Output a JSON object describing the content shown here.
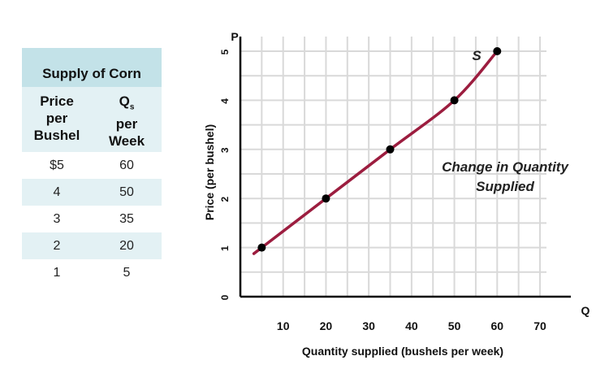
{
  "table": {
    "title": "Supply of Corn",
    "headers": [
      {
        "lines": [
          "Price",
          "per",
          "Bushel"
        ]
      },
      {
        "lines": [
          "Q",
          "per",
          "Week"
        ],
        "subscript": "s"
      }
    ],
    "rows": [
      {
        "price": "$5",
        "qty": "60"
      },
      {
        "price": "4",
        "qty": "50"
      },
      {
        "price": "3",
        "qty": "35"
      },
      {
        "price": "2",
        "qty": "20"
      },
      {
        "price": "1",
        "qty": "5"
      }
    ]
  },
  "chart_data": {
    "type": "line",
    "xlabel": "Quantity supplied (bushels per week)",
    "ylabel": "Price (per bushel)",
    "x_axis_symbol": "Q",
    "y_axis_symbol": "P",
    "xlim": [
      0,
      70
    ],
    "ylim": [
      0,
      5
    ],
    "x_ticks": [
      10,
      20,
      30,
      40,
      50,
      60,
      70
    ],
    "y_ticks": [
      0,
      1,
      2,
      3,
      4,
      5
    ],
    "grid": true,
    "series": [
      {
        "name": "S",
        "color": "#9c1d3f",
        "points": [
          {
            "x": 5,
            "y": 1
          },
          {
            "x": 20,
            "y": 2
          },
          {
            "x": 35,
            "y": 3
          },
          {
            "x": 50,
            "y": 4
          },
          {
            "x": 60,
            "y": 5
          }
        ]
      }
    ],
    "annotation": [
      "Change in Quantity",
      "Supplied"
    ]
  }
}
